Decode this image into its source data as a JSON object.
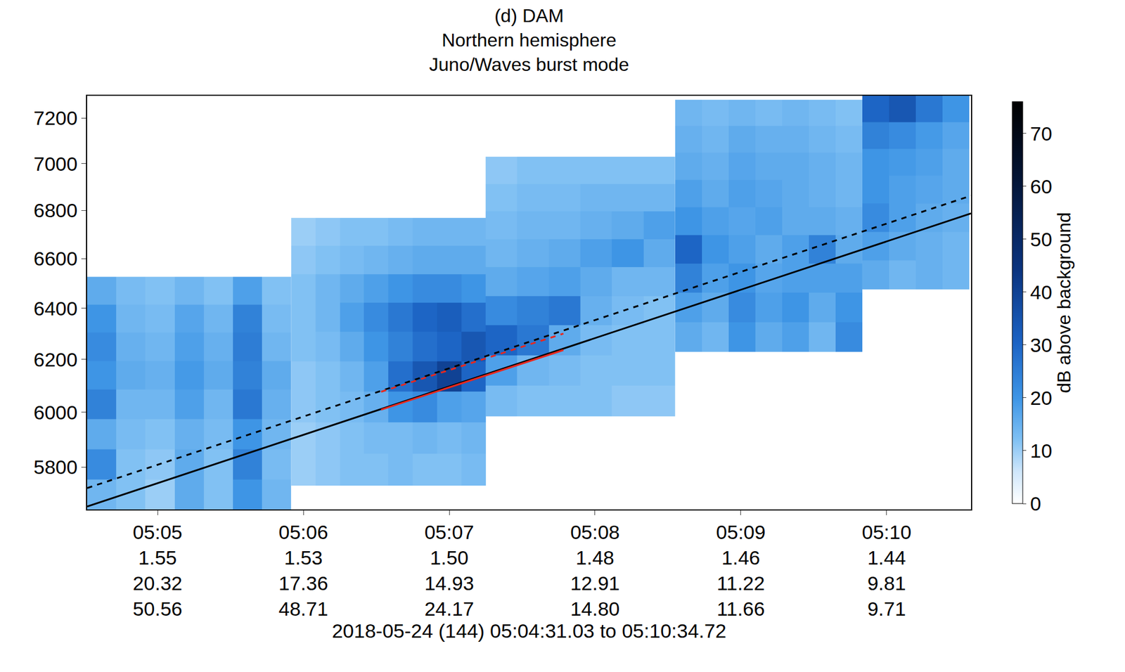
{
  "chart_data": {
    "type": "heatmap",
    "title": "(d) DAM",
    "subtitle": [
      "Northern hemisphere",
      "Juno/Waves burst mode"
    ],
    "x_label": "2018-05-24 (144) 05:04:31.03 to 05:10:34.72",
    "xlim": [
      "2018-05-24 05:04:31.03",
      "2018-05-24 05:10:34.72"
    ],
    "xticks": [
      {
        "value": "2018-05-24 05:05:00",
        "label": "05:05\n1.55\n20.32\n50.56"
      },
      {
        "value": "2018-05-24 05:06:00",
        "label": "05:06\n1.53\n17.36\n48.71"
      },
      {
        "value": "2018-05-24 05:07:00",
        "label": "05:07\n1.50\n14.93\n24.17"
      },
      {
        "value": "2018-05-24 05:08:00",
        "label": "05:08\n1.48\n12.91\n14.80"
      },
      {
        "value": "2018-05-24 05:09:00",
        "label": "05:09\n1.46\n11.22\n11.66"
      },
      {
        "value": "2018-05-24 05:10:00",
        "label": "05:10\n1.44\n9.81\n9.71"
      }
    ],
    "ylim": [
      5650,
      7300
    ],
    "yticks": [
      5800,
      6000,
      6200,
      6400,
      6600,
      6800,
      7000,
      7200
    ],
    "log": "y",
    "grid": false,
    "panels": [
      {
        "x": [
          "2018-05-24 05:04:37",
          "2018-05-24 05:04:49",
          "2018-05-24 05:05:01",
          "2018-05-24 05:05:13",
          "2018-05-24 05:05:25",
          "2018-05-24 05:05:37",
          "2018-05-24 05:05:49"
        ],
        "y": [
          5700,
          5810,
          5920,
          6030,
          6140,
          6250,
          6360,
          6470
        ],
        "z": [
          [
            14,
            12,
            10,
            16,
            12,
            20,
            14
          ],
          [
            22,
            12,
            11,
            16,
            12,
            24,
            13
          ],
          [
            16,
            13,
            12,
            15,
            13,
            20,
            14
          ],
          [
            24,
            14,
            14,
            18,
            14,
            26,
            15
          ],
          [
            20,
            16,
            15,
            19,
            16,
            24,
            16
          ],
          [
            22,
            15,
            14,
            18,
            15,
            25,
            14
          ],
          [
            20,
            14,
            13,
            17,
            14,
            24,
            13
          ],
          [
            16,
            13,
            12,
            14,
            12,
            18,
            12
          ]
        ]
      },
      {
        "x": [
          "2018-05-24 05:06:00",
          "2018-05-24 05:06:10",
          "2018-05-24 05:06:20",
          "2018-05-24 05:06:30",
          "2018-05-24 05:06:40",
          "2018-05-24 05:06:50",
          "2018-05-24 05:07:00",
          "2018-05-24 05:07:10"
        ],
        "y": [
          5790,
          5905,
          6020,
          6135,
          6250,
          6365,
          6480,
          6595,
          6710
        ],
        "z": [
          [
            10,
            11,
            12,
            12,
            13,
            12,
            12,
            13
          ],
          [
            10,
            11,
            12,
            13,
            13,
            14,
            13,
            14
          ],
          [
            11,
            12,
            13,
            15,
            20,
            22,
            18,
            17
          ],
          [
            11,
            12,
            14,
            18,
            28,
            34,
            40,
            30
          ],
          [
            12,
            13,
            16,
            20,
            24,
            28,
            30,
            34
          ],
          [
            12,
            14,
            18,
            22,
            26,
            30,
            32,
            28
          ],
          [
            12,
            14,
            16,
            18,
            20,
            22,
            22,
            20
          ],
          [
            11,
            12,
            13,
            14,
            15,
            16,
            16,
            16
          ],
          [
            10,
            11,
            12,
            12,
            13,
            14,
            14,
            14
          ]
        ]
      },
      {
        "x": [
          "2018-05-24 05:07:21.5",
          "2018-05-24 05:07:34.5",
          "2018-05-24 05:07:47.5",
          "2018-05-24 05:08:00.5",
          "2018-05-24 05:08:13.5",
          "2018-05-24 05:08:26.5"
        ],
        "y": [
          6043,
          6159,
          6275,
          6391,
          6507,
          6623,
          6739,
          6855,
          6971
        ],
        "z": [
          [
            13,
            12,
            12,
            12,
            11,
            11
          ],
          [
            18,
            14,
            13,
            12,
            12,
            12
          ],
          [
            30,
            26,
            16,
            13,
            12,
            12
          ],
          [
            22,
            24,
            26,
            15,
            13,
            12
          ],
          [
            16,
            17,
            18,
            16,
            14,
            14
          ],
          [
            14,
            15,
            16,
            18,
            20,
            16
          ],
          [
            13,
            14,
            14,
            15,
            16,
            18
          ],
          [
            12,
            13,
            13,
            14,
            14,
            14
          ],
          [
            11,
            12,
            12,
            12,
            12,
            12
          ]
        ]
      },
      {
        "x": [
          "2018-05-24 05:08:38.5",
          "2018-05-24 05:08:49.5",
          "2018-05-24 05:09:00.5",
          "2018-05-24 05:09:11.5",
          "2018-05-24 05:09:22.5",
          "2018-05-24 05:09:33.5",
          "2018-05-24 05:09:44.5"
        ],
        "y": [
          6287,
          6404,
          6521,
          6638,
          6755,
          6872,
          6989,
          7106,
          7223
        ],
        "z": [
          [
            16,
            14,
            20,
            16,
            18,
            14,
            22
          ],
          [
            18,
            16,
            22,
            18,
            20,
            16,
            20
          ],
          [
            24,
            18,
            20,
            17,
            18,
            18,
            18
          ],
          [
            30,
            20,
            18,
            16,
            18,
            24,
            16
          ],
          [
            20,
            18,
            17,
            18,
            16,
            16,
            15
          ],
          [
            18,
            16,
            18,
            17,
            16,
            15,
            14
          ],
          [
            16,
            15,
            17,
            16,
            16,
            15,
            14
          ],
          [
            15,
            14,
            16,
            15,
            15,
            14,
            13
          ],
          [
            14,
            13,
            14,
            13,
            14,
            13,
            12
          ]
        ]
      },
      {
        "x": [
          "2018-05-24 05:09:55.5",
          "2018-05-24 05:10:06.5",
          "2018-05-24 05:10:17.5",
          "2018-05-24 05:10:28.5"
        ],
        "y": [
          6534,
          6652,
          6770,
          6888,
          7006,
          7124,
          7242
        ],
        "z": [
          [
            16,
            14,
            15,
            14
          ],
          [
            18,
            16,
            15,
            14
          ],
          [
            22,
            18,
            16,
            15
          ],
          [
            20,
            18,
            17,
            16
          ],
          [
            20,
            19,
            18,
            16
          ],
          [
            24,
            22,
            19,
            17
          ],
          [
            30,
            34,
            26,
            20
          ]
        ]
      }
    ],
    "colorbar": {
      "title": "dB above background",
      "range": [
        0,
        76
      ],
      "ticks": [
        0,
        10,
        20,
        30,
        40,
        50,
        60,
        70
      ]
    },
    "series": [
      {
        "x": [
          "2018-05-24 05:04:31.03",
          "2018-05-24 05:10:34.72"
        ],
        "values": [
          5660,
          6787
        ],
        "color": "#000000",
        "line_style": "solid"
      },
      {
        "x": [
          "2018-05-24 05:04:31.03",
          "2018-05-24 05:10:34.72"
        ],
        "values": [
          5725,
          6862
        ],
        "color": "#000000",
        "line_style": "dashed"
      },
      {
        "x": [
          "2018-05-24 05:06:32",
          "2018-05-24 05:07:47"
        ],
        "values": [
          6010,
          6236
        ],
        "color": "#e8281e",
        "line_style": "solid"
      },
      {
        "x": [
          "2018-05-24 05:06:32",
          "2018-05-24 05:07:47"
        ],
        "values": [
          6077,
          6300
        ],
        "color": "#e8281e",
        "line_style": "dashed"
      }
    ]
  }
}
